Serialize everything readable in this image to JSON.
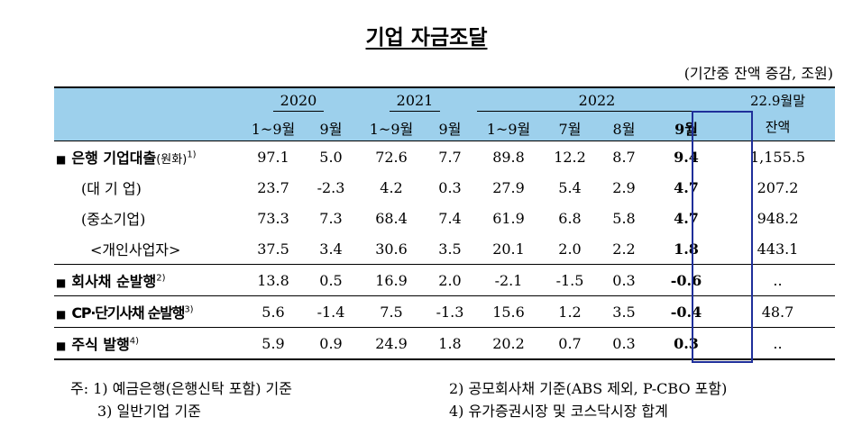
{
  "title": "기업 자금조달",
  "unit": "(기간중 잔액 증감, 조원)",
  "header": {
    "years": [
      "2020",
      "2021",
      "2022"
    ],
    "last_col_line1": "22.9월말",
    "last_col_line2": "잔액",
    "periods": [
      "1~9월",
      "9월",
      "1~9월",
      "9월",
      "1~9월",
      "7월",
      "8월",
      "9월"
    ]
  },
  "rows": [
    {
      "label": "은행 기업대출",
      "label_small": "(원화)",
      "sup": "1)",
      "values": [
        "97.1",
        "5.0",
        "72.6",
        "7.7",
        "89.8",
        "12.2",
        "8.7",
        "9.4",
        "1,155.5"
      ]
    },
    {
      "label": "(대 기 업)",
      "values": [
        "23.7",
        "-2.3",
        "4.2",
        "0.3",
        "27.9",
        "5.4",
        "2.9",
        "4.7",
        "207.2"
      ]
    },
    {
      "label": "(중소기업)",
      "values": [
        "73.3",
        "7.3",
        "68.4",
        "7.4",
        "61.9",
        "6.8",
        "5.8",
        "4.7",
        "948.2"
      ]
    },
    {
      "label": "<개인사업자>",
      "values": [
        "37.5",
        "3.4",
        "30.6",
        "3.5",
        "20.1",
        "2.0",
        "2.2",
        "1.8",
        "443.1"
      ]
    },
    {
      "label": "회사채 순발행",
      "sup": "2)",
      "values": [
        "13.8",
        "0.5",
        "16.9",
        "2.0",
        "-2.1",
        "-1.5",
        "0.3",
        "-0.6",
        ".."
      ]
    },
    {
      "label": "CP·단기사채 순발행",
      "sup": "3)",
      "values": [
        "5.6",
        "-1.4",
        "7.5",
        "-1.3",
        "15.6",
        "1.2",
        "3.5",
        "-0.4",
        "48.7"
      ]
    },
    {
      "label": "주식 발행",
      "sup": "4)",
      "values": [
        "5.9",
        "0.9",
        "24.9",
        "1.8",
        "20.2",
        "0.7",
        "0.3",
        "0.3",
        ".."
      ]
    }
  ],
  "bullet": "■",
  "notes": {
    "n1": "주: 1) 예금은행(은행신탁 포함) 기준",
    "n3": "3) 일반기업 기준",
    "n2": "2) 공모회사채 기준(ABS 제외, P-CBO 포함)",
    "n4": "4) 유가증권시장 및 코스닥시장 합계"
  }
}
